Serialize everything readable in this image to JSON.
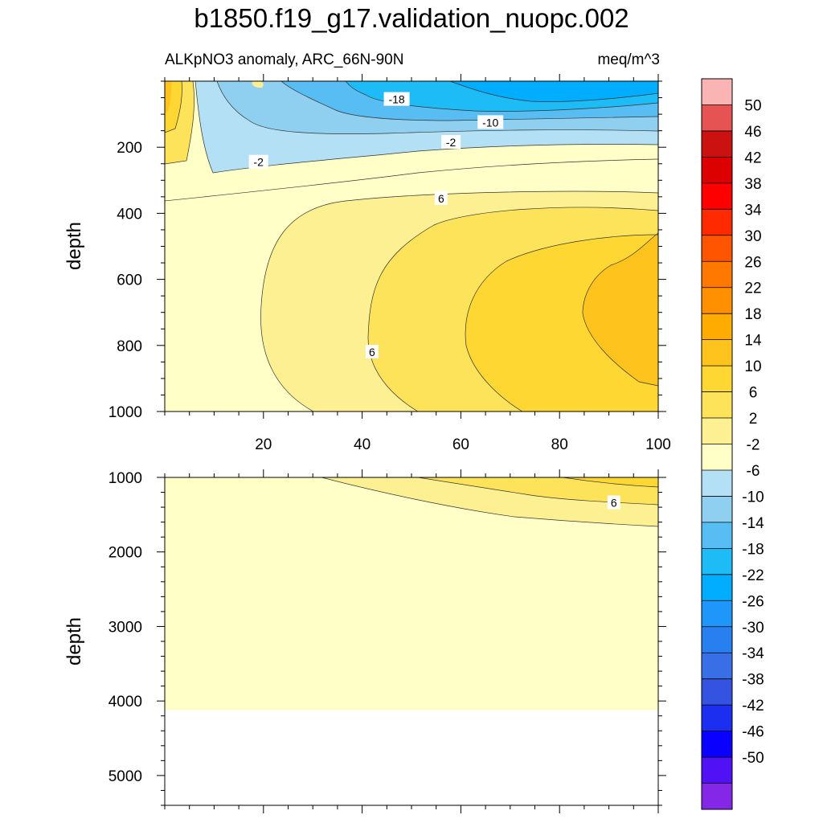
{
  "figure": {
    "title": "b1850.f19_g17.validation_nuopc.002",
    "left_subtitle": "ALKpNO3 anomaly, ARC_66N-90N",
    "right_subtitle": "meq/m^3"
  },
  "chart_data": [
    {
      "type": "heatmap",
      "subtype": "filled-contour",
      "panel": "upper",
      "xlim": [
        0,
        100
      ],
      "ylim": [
        1000,
        0
      ],
      "y_reversed": true,
      "ylabel": "depth",
      "xticks": [
        20,
        40,
        60,
        80,
        100
      ],
      "yticks": [
        200,
        400,
        600,
        800,
        1000
      ],
      "contour_labels": [
        {
          "text": "-18",
          "x": 47,
          "y": 55
        },
        {
          "text": "-10",
          "x": 66,
          "y": 125
        },
        {
          "text": "-2",
          "x": 58,
          "y": 185
        },
        {
          "text": "-2",
          "x": 19,
          "y": 245
        },
        {
          "text": "6",
          "x": 56,
          "y": 355
        },
        {
          "text": "6",
          "x": 42,
          "y": 820
        }
      ]
    },
    {
      "type": "heatmap",
      "subtype": "filled-contour",
      "panel": "lower",
      "xlim": [
        0,
        100
      ],
      "ylim": [
        5400,
        1000
      ],
      "y_reversed": true,
      "ylabel": "depth",
      "yticks": [
        1000,
        2000,
        3000,
        4000,
        5000
      ],
      "data_bottom_depth": 4120,
      "contour_labels": [
        {
          "text": "6",
          "x": 91,
          "y": 1340
        }
      ]
    }
  ],
  "colorbar": {
    "levels": [
      50,
      46,
      42,
      38,
      34,
      30,
      26,
      22,
      18,
      14,
      10,
      6,
      2,
      -2,
      -6,
      -10,
      -14,
      -18,
      -22,
      -26,
      -30,
      -34,
      -38,
      -42,
      -46,
      -50
    ],
    "colors": [
      "#fbb4b4",
      "#e65353",
      "#cc1111",
      "#dd0000",
      "#ff0000",
      "#ff2a00",
      "#ff5500",
      "#ff7800",
      "#ff9100",
      "#ffab00",
      "#ffc31e",
      "#ffd733",
      "#fde35a",
      "#fdf092",
      "#ffffc8",
      "#b4e0f5",
      "#8fcff0",
      "#57bdf2",
      "#1ebcf7",
      "#00adff",
      "#1e96fa",
      "#2880f0",
      "#386ee6",
      "#3453e0",
      "#1c2ef0",
      "#0a00ff",
      "#5011f5",
      "#8527e6"
    ]
  },
  "palette": {
    "c_m18": "#1ebcf7",
    "c_m14": "#57bdf2",
    "c_m10": "#8fcff0",
    "c_m6": "#b4e0f5",
    "c_m2": "#ffffc8",
    "c_2": "#fdf092",
    "c_6": "#fde35a",
    "c_10": "#ffd733",
    "c_14": "#ffc31e",
    "c_18": "#ffab00"
  }
}
